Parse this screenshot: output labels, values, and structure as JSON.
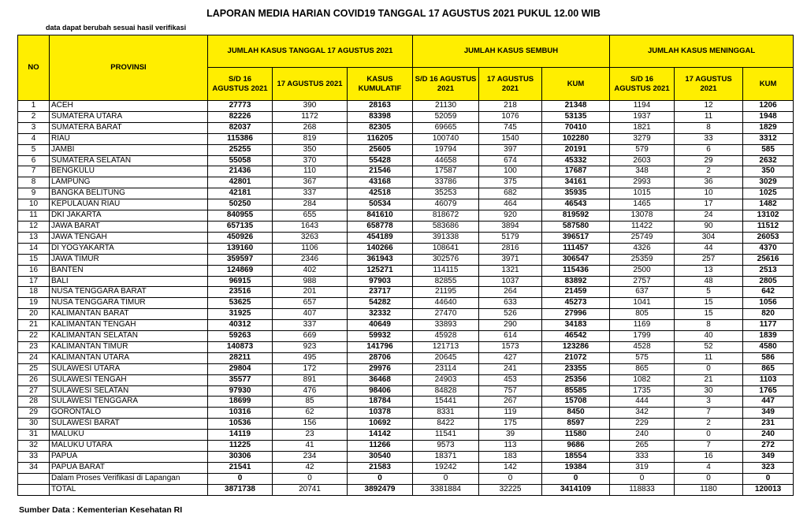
{
  "header": {
    "title": "LAPORAN MEDIA HARIAN COVID19 TANGGAL 17 AGUSTUS 2021 PUKUL 12.00 WIB",
    "subtitle": "data dapat berubah sesuai hasil verifikasi"
  },
  "table": {
    "no_header": "NO",
    "province_header": "PROVINSI",
    "groups": [
      "JUMLAH KASUS TANGGAL 17 AGUSTUS 2021",
      "JUMLAH KASUS SEMBUH",
      "JUMLAH KASUS MENINGGAL"
    ],
    "columns": [
      "S/D 16 AGUSTUS 2021",
      "17 AGUSTUS 2021",
      "KASUS KUMULATIF",
      "S/D 16 AGUSTUS 2021",
      "17 AGUSTUS 2021",
      "KUM",
      "S/D 16 AGUSTUS 2021",
      "17 AGUSTUS 2021",
      "KUM"
    ],
    "rows": [
      {
        "no": 1,
        "province": "ACEH",
        "values": [
          27773,
          390,
          28163,
          21130,
          218,
          21348,
          1194,
          12,
          1206
        ]
      },
      {
        "no": 2,
        "province": "SUMATERA UTARA",
        "values": [
          82226,
          1172,
          83398,
          52059,
          1076,
          53135,
          1937,
          11,
          1948
        ]
      },
      {
        "no": 3,
        "province": "SUMATERA BARAT",
        "values": [
          82037,
          268,
          82305,
          69665,
          745,
          70410,
          1821,
          8,
          1829
        ]
      },
      {
        "no": 4,
        "province": "RIAU",
        "values": [
          115386,
          819,
          116205,
          100740,
          1540,
          102280,
          3279,
          33,
          3312
        ]
      },
      {
        "no": 5,
        "province": "JAMBI",
        "values": [
          25255,
          350,
          25605,
          19794,
          397,
          20191,
          579,
          6,
          585
        ]
      },
      {
        "no": 6,
        "province": "SUMATERA SELATAN",
        "values": [
          55058,
          370,
          55428,
          44658,
          674,
          45332,
          2603,
          29,
          2632
        ]
      },
      {
        "no": 7,
        "province": "BENGKULU",
        "values": [
          21436,
          110,
          21546,
          17587,
          100,
          17687,
          348,
          2,
          350
        ]
      },
      {
        "no": 8,
        "province": "LAMPUNG",
        "values": [
          42801,
          367,
          43168,
          33786,
          375,
          34161,
          2993,
          36,
          3029
        ]
      },
      {
        "no": 9,
        "province": "BANGKA BELITUNG",
        "values": [
          42181,
          337,
          42518,
          35253,
          682,
          35935,
          1015,
          10,
          1025
        ]
      },
      {
        "no": 10,
        "province": "KEPULAUAN RIAU",
        "values": [
          50250,
          284,
          50534,
          46079,
          464,
          46543,
          1465,
          17,
          1482
        ]
      },
      {
        "no": 11,
        "province": "DKI JAKARTA",
        "values": [
          840955,
          655,
          841610,
          818672,
          920,
          819592,
          13078,
          24,
          13102
        ]
      },
      {
        "no": 12,
        "province": "JAWA BARAT",
        "values": [
          657135,
          1643,
          658778,
          583686,
          3894,
          587580,
          11422,
          90,
          11512
        ]
      },
      {
        "no": 13,
        "province": "JAWA TENGAH",
        "values": [
          450926,
          3263,
          454189,
          391338,
          5179,
          396517,
          25749,
          304,
          26053
        ]
      },
      {
        "no": 14,
        "province": "DI YOGYAKARTA",
        "values": [
          139160,
          1106,
          140266,
          108641,
          2816,
          111457,
          4326,
          44,
          4370
        ]
      },
      {
        "no": 15,
        "province": "JAWA TIMUR",
        "values": [
          359597,
          2346,
          361943,
          302576,
          3971,
          306547,
          25359,
          257,
          25616
        ]
      },
      {
        "no": 16,
        "province": "BANTEN",
        "values": [
          124869,
          402,
          125271,
          114115,
          1321,
          115436,
          2500,
          13,
          2513
        ]
      },
      {
        "no": 17,
        "province": "BALI",
        "values": [
          96915,
          988,
          97903,
          82855,
          1037,
          83892,
          2757,
          48,
          2805
        ]
      },
      {
        "no": 18,
        "province": "NUSA TENGGARA BARAT",
        "values": [
          23516,
          201,
          23717,
          21195,
          264,
          21459,
          637,
          5,
          642
        ]
      },
      {
        "no": 19,
        "province": "NUSA TENGGARA TIMUR",
        "values": [
          53625,
          657,
          54282,
          44640,
          633,
          45273,
          1041,
          15,
          1056
        ]
      },
      {
        "no": 20,
        "province": "KALIMANTAN BARAT",
        "values": [
          31925,
          407,
          32332,
          27470,
          526,
          27996,
          805,
          15,
          820
        ]
      },
      {
        "no": 21,
        "province": "KALIMANTAN TENGAH",
        "values": [
          40312,
          337,
          40649,
          33893,
          290,
          34183,
          1169,
          8,
          1177
        ]
      },
      {
        "no": 22,
        "province": "KALIMANTAN SELATAN",
        "values": [
          59263,
          669,
          59932,
          45928,
          614,
          46542,
          1799,
          40,
          1839
        ]
      },
      {
        "no": 23,
        "province": "KALIMANTAN TIMUR",
        "values": [
          140873,
          923,
          141796,
          121713,
          1573,
          123286,
          4528,
          52,
          4580
        ]
      },
      {
        "no": 24,
        "province": "KALIMANTAN UTARA",
        "values": [
          28211,
          495,
          28706,
          20645,
          427,
          21072,
          575,
          11,
          586
        ]
      },
      {
        "no": 25,
        "province": "SULAWESI UTARA",
        "values": [
          29804,
          172,
          29976,
          23114,
          241,
          23355,
          865,
          0,
          865
        ]
      },
      {
        "no": 26,
        "province": "SULAWESI TENGAH",
        "values": [
          35577,
          891,
          36468,
          24903,
          453,
          25356,
          1082,
          21,
          1103
        ]
      },
      {
        "no": 27,
        "province": "SULAWESI SELATAN",
        "values": [
          97930,
          476,
          98406,
          84828,
          757,
          85585,
          1735,
          30,
          1765
        ]
      },
      {
        "no": 28,
        "province": "SULAWESI TENGGARA",
        "values": [
          18699,
          85,
          18784,
          15441,
          267,
          15708,
          444,
          3,
          447
        ]
      },
      {
        "no": 29,
        "province": "GORONTALO",
        "values": [
          10316,
          62,
          10378,
          8331,
          119,
          8450,
          342,
          7,
          349
        ]
      },
      {
        "no": 30,
        "province": "SULAWESI BARAT",
        "values": [
          10536,
          156,
          10692,
          8422,
          175,
          8597,
          229,
          2,
          231
        ]
      },
      {
        "no": 31,
        "province": "MALUKU",
        "values": [
          14119,
          23,
          14142,
          11541,
          39,
          11580,
          240,
          0,
          240
        ]
      },
      {
        "no": 32,
        "province": "MALUKU UTARA",
        "values": [
          11225,
          41,
          11266,
          9573,
          113,
          9686,
          265,
          7,
          272
        ]
      },
      {
        "no": 33,
        "province": "PAPUA",
        "values": [
          30306,
          234,
          30540,
          18371,
          183,
          18554,
          333,
          16,
          349
        ]
      },
      {
        "no": 34,
        "province": "PAPUA BARAT",
        "values": [
          21541,
          42,
          21583,
          19242,
          142,
          19384,
          319,
          4,
          323
        ]
      },
      {
        "province": "Dalam Proses Verifikasi di Lapangan",
        "values": [
          0,
          0,
          0,
          0,
          0,
          0,
          0,
          0,
          0
        ]
      },
      {
        "province": "TOTAL",
        "values": [
          3871738,
          20741,
          3892479,
          3381884,
          32225,
          3414109,
          118833,
          1180,
          120013
        ]
      }
    ]
  },
  "footer": {
    "source": "Sumber Data : Kementerian Kesehatan RI"
  }
}
